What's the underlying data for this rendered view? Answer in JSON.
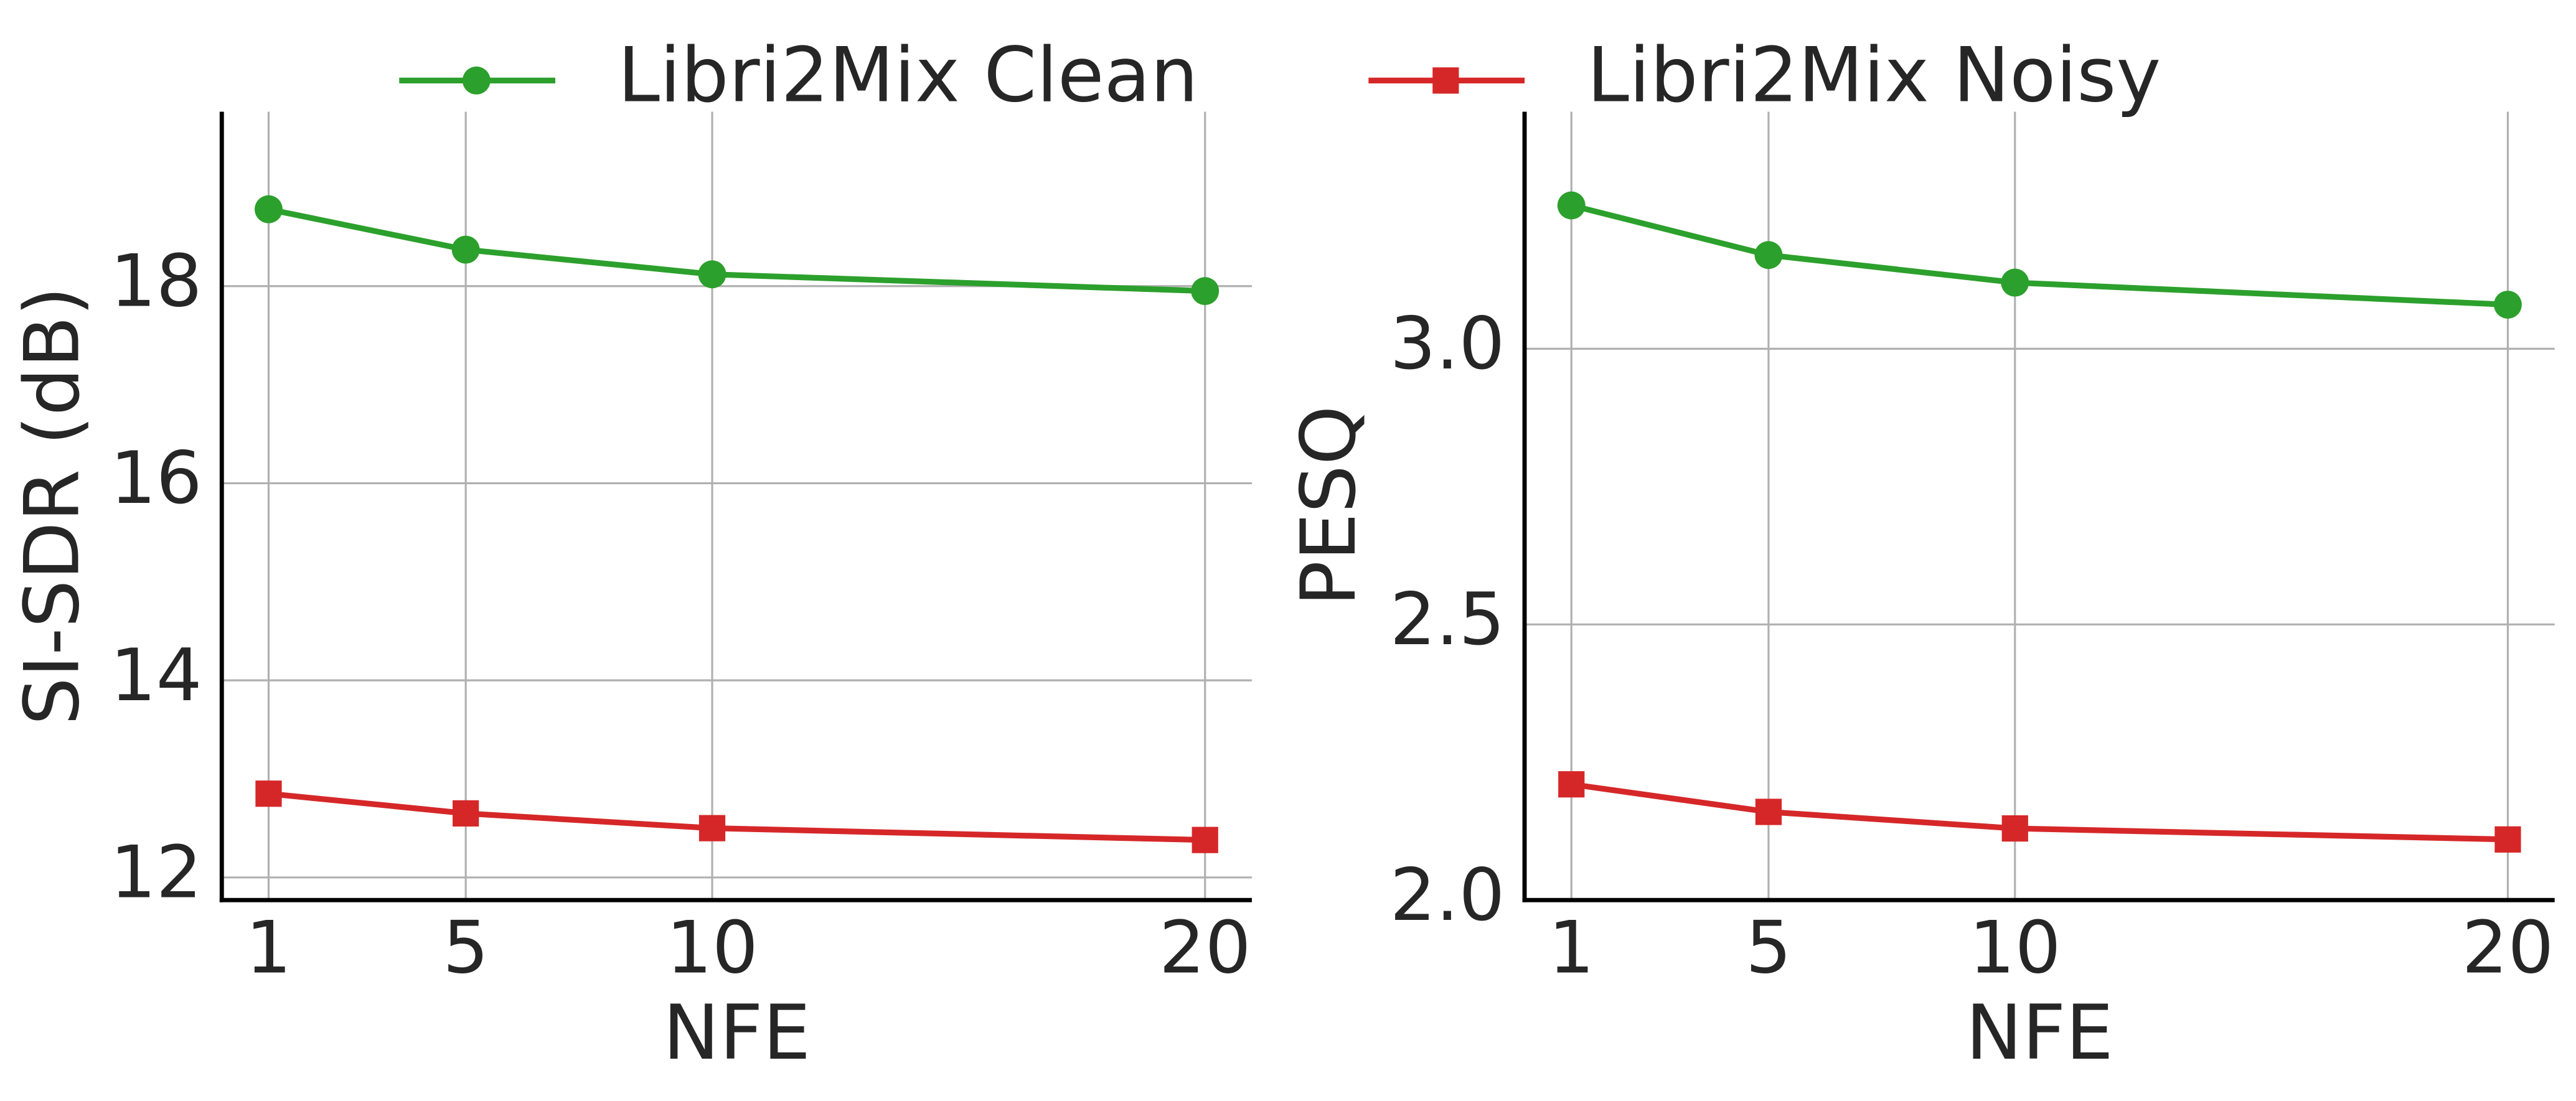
{
  "chart_data": [
    {
      "type": "line",
      "xlabel": "NFE",
      "ylabel": "SI-SDR (dB)",
      "x": [
        1,
        5,
        10,
        20
      ],
      "series": [
        {
          "name": "Libri2Mix Clean",
          "color": "#2ca02c",
          "marker": "circle",
          "values": [
            18.78,
            18.37,
            18.12,
            17.95
          ]
        },
        {
          "name": "Libri2Mix Noisy",
          "color": "#d62728",
          "marker": "square",
          "values": [
            12.85,
            12.65,
            12.5,
            12.38
          ]
        }
      ],
      "xlim": [
        0.05,
        20.95
      ],
      "xticks": [
        1,
        5,
        10,
        20
      ],
      "ylim": [
        11.77,
        19.77
      ],
      "yticks": [
        12,
        14,
        16,
        18
      ],
      "grid": true,
      "legend": "top"
    },
    {
      "type": "line",
      "xlabel": "NFE",
      "ylabel": "PESQ",
      "x": [
        1,
        5,
        10,
        20
      ],
      "series": [
        {
          "color": "#2ca02c",
          "marker": "circle",
          "values": [
            3.26,
            3.17,
            3.12,
            3.08
          ]
        },
        {
          "color": "#d62728",
          "marker": "square",
          "values": [
            2.21,
            2.16,
            2.13,
            2.11
          ]
        }
      ],
      "xlim": [
        0.05,
        20.95
      ],
      "xticks": [
        1,
        5,
        10,
        20
      ],
      "ylim": [
        2.0,
        3.43
      ],
      "yticks": [
        {
          "value": 2,
          "label": "2.0"
        },
        2.5,
        {
          "value": 3,
          "label": "3.0"
        }
      ],
      "grid": true
    }
  ]
}
